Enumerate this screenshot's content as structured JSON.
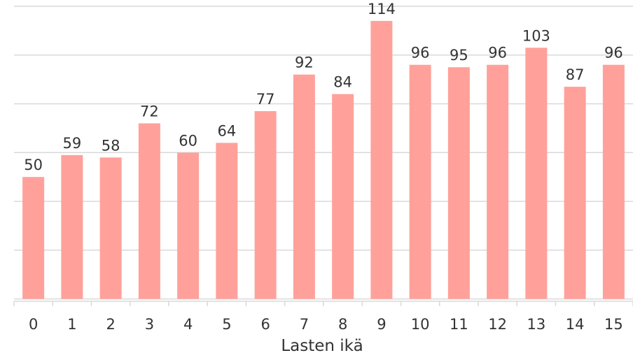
{
  "chart_data": {
    "type": "bar",
    "categories": [
      "0",
      "1",
      "2",
      "3",
      "4",
      "5",
      "6",
      "7",
      "8",
      "9",
      "10",
      "11",
      "12",
      "13",
      "14",
      "15"
    ],
    "values": [
      50,
      59,
      58,
      72,
      60,
      64,
      77,
      92,
      84,
      114,
      96,
      95,
      96,
      103,
      87,
      96
    ],
    "title": "",
    "xlabel": "Lasten ikä",
    "ylabel": "",
    "ylim": [
      -10,
      120
    ],
    "grid": true,
    "legend": "none",
    "bar_color": "#ffa19a",
    "gridline_color": "#d9d9d9",
    "text_color": "#333333"
  }
}
